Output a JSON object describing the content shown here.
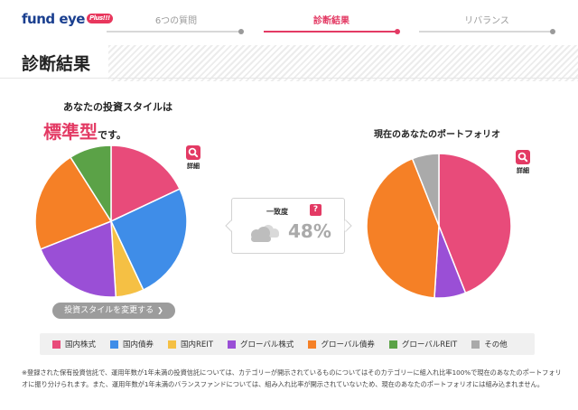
{
  "header": {
    "logo_text": "fund eye",
    "logo_badge": "Plus!!!",
    "steps": [
      {
        "label": "6つの質問",
        "active": false
      },
      {
        "label": "診断結果",
        "active": true
      },
      {
        "label": "リバランス",
        "active": false
      }
    ]
  },
  "page_title": "診断結果",
  "investment_style": {
    "intro": "あなたの投資スタイルは",
    "name": "標準型",
    "suffix": "です。",
    "change_button": "投資スタイルを変更する",
    "change_button_arrow": "❯"
  },
  "detail_label": "詳細",
  "match": {
    "label": "一致度",
    "help_badge": "?",
    "value": "48%"
  },
  "portfolio_title": "現在のあなたのポートフォリオ",
  "colors": {
    "domestic_stock": "#e84b7a",
    "domestic_bond": "#3f8de8",
    "domestic_reit": "#f5c044",
    "global_stock": "#9a4fd6",
    "global_bond": "#f58026",
    "global_reit": "#5ba247",
    "other": "#aaaaaa",
    "accent": "#e33a64"
  },
  "chart_data": [
    {
      "type": "pie",
      "categories": [
        "国内株式",
        "国内債券",
        "国内REIT",
        "グローバル株式",
        "グローバル債券",
        "グローバルREIT",
        "その他"
      ],
      "values": [
        18,
        25,
        6,
        20,
        22,
        9,
        0
      ]
    },
    {
      "type": "pie",
      "categories": [
        "国内株式",
        "国内債券",
        "国内REIT",
        "グローバル株式",
        "グローバル債券",
        "グローバルREIT",
        "その他"
      ],
      "values": [
        44,
        0,
        0,
        7,
        43,
        0,
        6
      ]
    }
  ],
  "legend": [
    {
      "label": "国内株式",
      "color": "#e84b7a"
    },
    {
      "label": "国内債券",
      "color": "#3f8de8"
    },
    {
      "label": "国内REIT",
      "color": "#f5c044"
    },
    {
      "label": "グローバル株式",
      "color": "#9a4fd6"
    },
    {
      "label": "グローバル債券",
      "color": "#f58026"
    },
    {
      "label": "グローバルREIT",
      "color": "#5ba247"
    },
    {
      "label": "その他",
      "color": "#aaaaaa"
    }
  ],
  "footnote": "※登録された保有投資信託で、運用年数が1年未満の投資信託については、カテゴリーが開示されているものについてはそのカテゴリーに組入れ比率100%で現在のあなたのポートフォリオに振り分けられます。また、運用年数が1年未満のバランスファンドについては、組み入れ比率が開示されていないため、現在のあなたのポートフォリオには組み込まれません。"
}
